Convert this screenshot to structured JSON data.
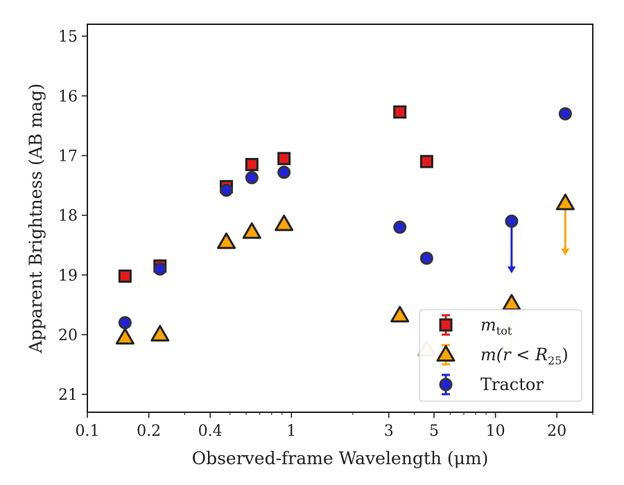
{
  "chart_data": {
    "type": "scatter",
    "title": "",
    "xlabel": "Observed-frame Wavelength (μm)",
    "ylabel": "Apparent Brightness (AB mag)",
    "xscale": "log",
    "xlim": [
      0.1,
      30
    ],
    "ylim": [
      21.3,
      14.8
    ],
    "y_inverted": true,
    "grid": false,
    "legend_position": "lower-right",
    "xticks": [
      {
        "value": 0.1,
        "label": "0.1"
      },
      {
        "value": 0.2,
        "label": "0.2"
      },
      {
        "value": 0.4,
        "label": "0.4"
      },
      {
        "value": 1,
        "label": "1"
      },
      {
        "value": 3,
        "label": "3"
      },
      {
        "value": 5,
        "label": "5"
      },
      {
        "value": 10,
        "label": "10"
      },
      {
        "value": 20,
        "label": "20"
      }
    ],
    "yticks": [
      {
        "value": 15,
        "label": "15"
      },
      {
        "value": 16,
        "label": "16"
      },
      {
        "value": 17,
        "label": "17"
      },
      {
        "value": 18,
        "label": "18"
      },
      {
        "value": 19,
        "label": "19"
      },
      {
        "value": 20,
        "label": "20"
      },
      {
        "value": 21,
        "label": "21"
      }
    ],
    "series": [
      {
        "name": "m_tot",
        "legend_label": "m",
        "legend_sub": "tot",
        "marker": "square",
        "color": "#e41a1c",
        "edge": "#222222",
        "points": [
          {
            "x": 0.153,
            "y": 19.02
          },
          {
            "x": 0.227,
            "y": 18.85
          },
          {
            "x": 0.48,
            "y": 17.52
          },
          {
            "x": 0.64,
            "y": 17.15
          },
          {
            "x": 0.92,
            "y": 17.05
          },
          {
            "x": 3.4,
            "y": 16.27
          },
          {
            "x": 4.6,
            "y": 17.1
          }
        ]
      },
      {
        "name": "m(r < R25)",
        "legend_label": "m(r < R",
        "legend_sub": "25",
        "legend_suffix": ")",
        "marker": "triangle",
        "color": "#ffa500",
        "edge": "#222222",
        "points": [
          {
            "x": 0.153,
            "y": 20.05
          },
          {
            "x": 0.227,
            "y": 20.0
          },
          {
            "x": 0.48,
            "y": 18.45
          },
          {
            "x": 0.64,
            "y": 18.28
          },
          {
            "x": 0.92,
            "y": 18.15
          },
          {
            "x": 3.4,
            "y": 19.68
          },
          {
            "x": 4.6,
            "y": 20.25,
            "faded": true
          },
          {
            "x": 12.0,
            "y": 19.48,
            "faded_bar": true
          },
          {
            "x": 22.0,
            "y": 17.8,
            "limit_to": 18.65
          }
        ]
      },
      {
        "name": "Tractor",
        "legend_label": "Tractor",
        "marker": "circle",
        "color": "#2222dd",
        "edge": "#333333",
        "points": [
          {
            "x": 0.153,
            "y": 19.8
          },
          {
            "x": 0.227,
            "y": 18.9
          },
          {
            "x": 0.48,
            "y": 17.58
          },
          {
            "x": 0.64,
            "y": 17.37
          },
          {
            "x": 0.92,
            "y": 17.28
          },
          {
            "x": 3.4,
            "y": 18.2
          },
          {
            "x": 4.6,
            "y": 18.72
          },
          {
            "x": 12.0,
            "y": 18.1,
            "limit_to": 18.95
          },
          {
            "x": 22.0,
            "y": 16.3
          }
        ]
      }
    ]
  }
}
